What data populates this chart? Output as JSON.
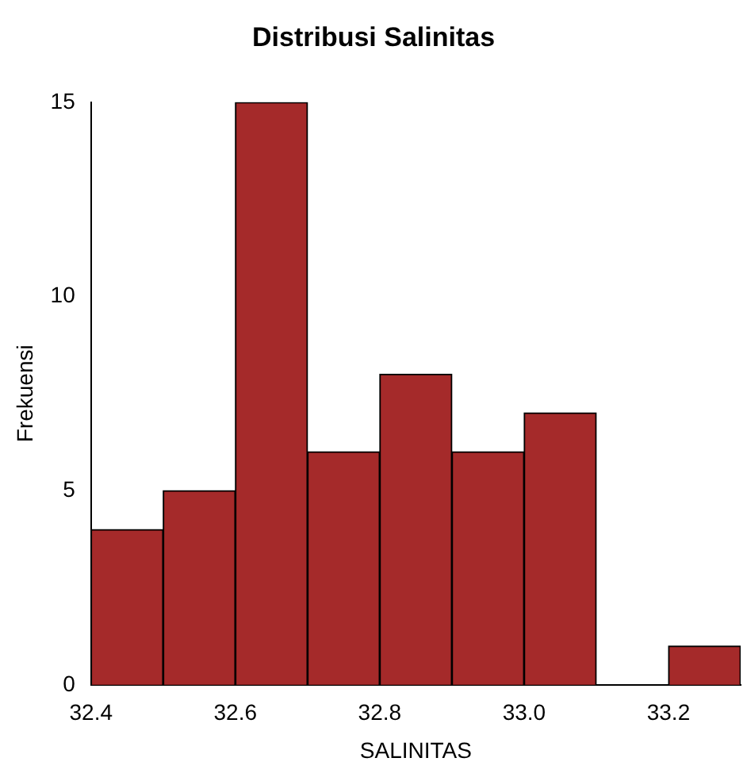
{
  "chart_data": {
    "type": "histogram",
    "title": "Distribusi Salinitas",
    "xlabel": "SALINITAS",
    "ylabel": "Frekuensi",
    "bins": [
      32.4,
      32.5,
      32.6,
      32.7,
      32.8,
      32.9,
      33.0,
      33.1,
      33.2,
      33.3
    ],
    "values": [
      4,
      5,
      15,
      6,
      8,
      6,
      7,
      0,
      1
    ],
    "color": "#a52a2a",
    "xlim": [
      32.4,
      33.3
    ],
    "xticks": [
      {
        "value": 32.4,
        "label": "32.4"
      },
      {
        "value": 32.6,
        "label": "32.6"
      },
      {
        "value": 32.8,
        "label": "32.8"
      },
      {
        "value": 33.0,
        "label": "33.0"
      },
      {
        "value": 33.2,
        "label": "33.2"
      }
    ],
    "ylim": [
      0,
      15
    ],
    "yticks": [
      0,
      5,
      10,
      15
    ],
    "grid": false,
    "legend": false
  }
}
